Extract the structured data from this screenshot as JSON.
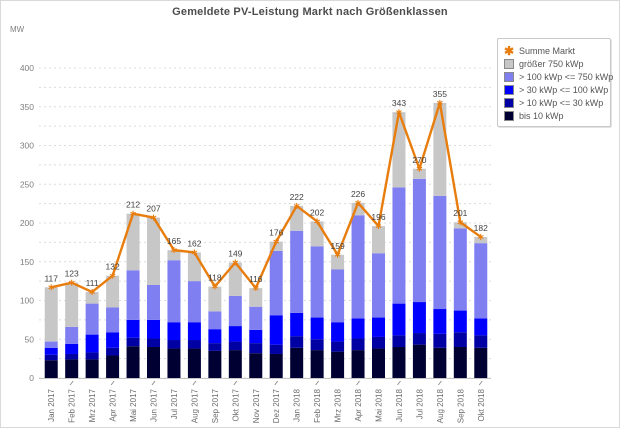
{
  "title": "Gemeldete PV-Leistung Markt nach Größenklassen",
  "y_axis": {
    "unit": "MW",
    "tick_labels": [
      0,
      50,
      100,
      150,
      200,
      250,
      300,
      350,
      400
    ],
    "minor_grid_step": 25
  },
  "legend": {
    "items": [
      {
        "label": "Summe Markt",
        "marker": "asterisk",
        "color": "#e87d0e"
      },
      {
        "label": "größer 750 kWp",
        "marker": "square",
        "color": "#c7c7c7"
      },
      {
        "label": "> 100 kWp <= 750 kWp",
        "marker": "square",
        "color": "#7f7ff2"
      },
      {
        "label": "> 30 kWp <= 100 kWp",
        "marker": "square",
        "color": "#0000ff"
      },
      {
        "label": "> 10 kWp <= 30 kWp",
        "marker": "square",
        "color": "#0000a3"
      },
      {
        "label": "bis 10 kWp",
        "marker": "square",
        "color": "#000033"
      }
    ]
  },
  "chart_data": {
    "type": "bar",
    "stacked": true,
    "title": "Gemeldete PV-Leistung Markt nach Größenklassen",
    "xlabel": "",
    "ylabel": "MW",
    "ylim": [
      0,
      400
    ],
    "grid": true,
    "legend_position": "top-right",
    "categories": [
      "Jan 2017",
      "Feb 2017",
      "Mrz 2017",
      "Apr 2017",
      "Mai 2017",
      "Jun 2017",
      "Jul 2017",
      "Aug 2017",
      "Sep 2017",
      "Okt 2017",
      "Nov 2017",
      "Dez 2017",
      "Jan 2018",
      "Feb 2018",
      "Mrz 2018",
      "Apr 2018",
      "Mai 2018",
      "Jun 2018",
      "Jul 2018",
      "Aug 2018",
      "Sep 2018",
      "Okt 2018"
    ],
    "series": [
      {
        "name": "bis 10 kWp",
        "color": "#000033",
        "values": [
          23,
          24,
          24,
          29,
          41,
          40,
          38,
          38,
          35,
          36,
          32,
          31,
          39,
          36,
          34,
          36,
          38,
          40,
          43,
          39,
          40,
          39
        ]
      },
      {
        "name": "> 10 kWp <= 30 kWp",
        "color": "#0000a3",
        "values": [
          7,
          7,
          9,
          10,
          11,
          11,
          11,
          11,
          10,
          11,
          13,
          12,
          15,
          14,
          13,
          15,
          15,
          15,
          15,
          18,
          19,
          16
        ]
      },
      {
        "name": "> 30 kWp <= 100 kWp",
        "color": "#0000ff",
        "values": [
          9,
          13,
          23,
          20,
          23,
          24,
          23,
          23,
          18,
          20,
          17,
          38,
          30,
          28,
          25,
          26,
          25,
          41,
          40,
          32,
          28,
          22
        ]
      },
      {
        "name": "> 100 kWp <= 750 kWp",
        "color": "#7f7ff2",
        "values": [
          8,
          22,
          40,
          32,
          64,
          45,
          80,
          53,
          23,
          39,
          30,
          83,
          106,
          92,
          68,
          133,
          83,
          150,
          159,
          146,
          106,
          97
        ]
      },
      {
        "name": "größer 750 kWp",
        "color": "#c7c7c7",
        "values": [
          70,
          57,
          15,
          41,
          73,
          87,
          13,
          37,
          32,
          43,
          24,
          12,
          32,
          32,
          19,
          16,
          35,
          97,
          13,
          120,
          8,
          8
        ]
      }
    ],
    "line_overlay": {
      "name": "Summe Markt",
      "color": "#e87d0e",
      "marker": "asterisk",
      "data_labels": true,
      "values": [
        117,
        123,
        111,
        132,
        212,
        207,
        165,
        162,
        118,
        149,
        116,
        176,
        222,
        202,
        159,
        226,
        196,
        343,
        270,
        355,
        201,
        182
      ]
    }
  }
}
